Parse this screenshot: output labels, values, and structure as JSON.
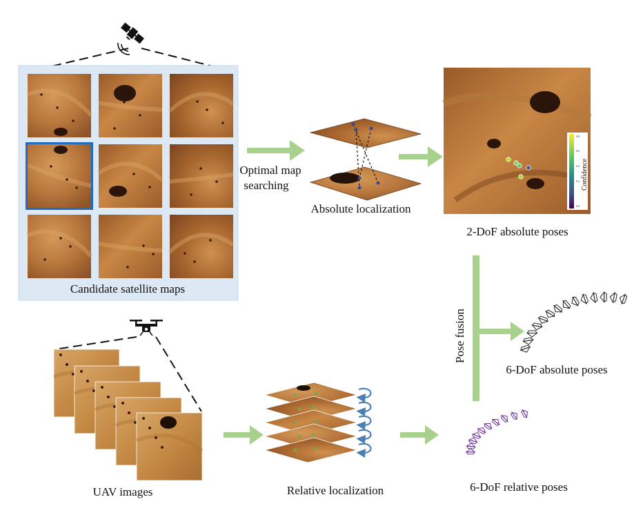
{
  "labels": {
    "candidate_maps": "Candidate satellite maps",
    "optimal_map_line1": "Optimal map",
    "optimal_map_line2": "searching",
    "absolute_localization": "Absolute localization",
    "absolute_poses_2dof": "2-DoF absolute poses",
    "pose_fusion": "Pose fusion",
    "absolute_poses_6dof": "6-DoF absolute poses",
    "uav_images": "UAV images",
    "relative_localization": "Relative localization",
    "relative_poses_6dof": "6-DoF relative poses",
    "colorbar_title": "Confidence"
  },
  "colors": {
    "candidate_panel_bg": "#dce8f4",
    "candidate_panel_border": "#c5d6e8",
    "selected_tile_border": "#1f6cc0",
    "arrow_green": "#a9d18e",
    "relative_pose_purple": "#7030a0",
    "absolute_pose_black": "#222222",
    "rotation_arrow_blue": "#4a7fb5",
    "terrain_light": "#c98a4a",
    "terrain_dark": "#8a5226"
  },
  "icons": {
    "satellite": "satellite-icon",
    "drone": "drone-icon"
  },
  "candidate_grid": {
    "rows": 3,
    "cols": 3,
    "selected_index": 3
  },
  "colorbar": {
    "ticks": [
      "0.8",
      "0.6",
      "0.4",
      "0.2",
      "0.0"
    ]
  }
}
